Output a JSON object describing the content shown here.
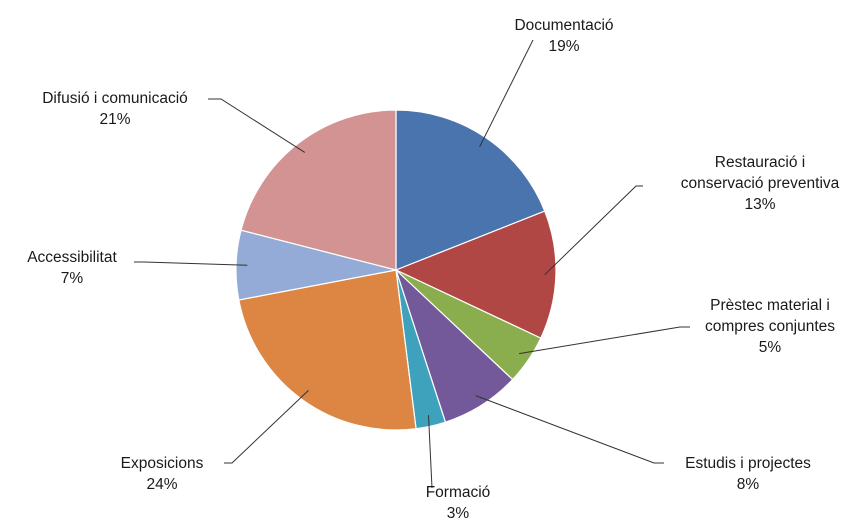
{
  "chart_data": {
    "type": "pie",
    "start_angle_deg": 0,
    "direction": "clockwise",
    "slices": [
      {
        "name": "Documentació",
        "label_lines": [
          "Documentació"
        ],
        "value": 19,
        "value_label": "19%",
        "color": "#4a74ad"
      },
      {
        "name": "Restauració i conservació preventiva",
        "label_lines": [
          "Restauració i",
          "conservació preventiva"
        ],
        "value": 13,
        "value_label": "13%",
        "color": "#b04744"
      },
      {
        "name": "Prèstec material i compres conjuntes",
        "label_lines": [
          "Prèstec material i",
          "compres conjuntes"
        ],
        "value": 5,
        "value_label": "5%",
        "color": "#8aad4e"
      },
      {
        "name": "Estudis i projectes",
        "label_lines": [
          "Estudis i projectes"
        ],
        "value": 8,
        "value_label": "8%",
        "color": "#73599a"
      },
      {
        "name": "Formació",
        "label_lines": [
          "Formació"
        ],
        "value": 3,
        "value_label": "3%",
        "color": "#3fa2bd"
      },
      {
        "name": "Exposicions",
        "label_lines": [
          "Exposicions"
        ],
        "value": 24,
        "value_label": "24%",
        "color": "#dd8542"
      },
      {
        "name": "Accessibilitat",
        "label_lines": [
          "Accessibilitat"
        ],
        "value": 7,
        "value_label": "7%",
        "color": "#93abd6"
      },
      {
        "name": "Difusió i comunicació",
        "label_lines": [
          "Difusió i comunicació"
        ],
        "value": 21,
        "value_label": "21%",
        "color": "#d39392"
      }
    ]
  }
}
